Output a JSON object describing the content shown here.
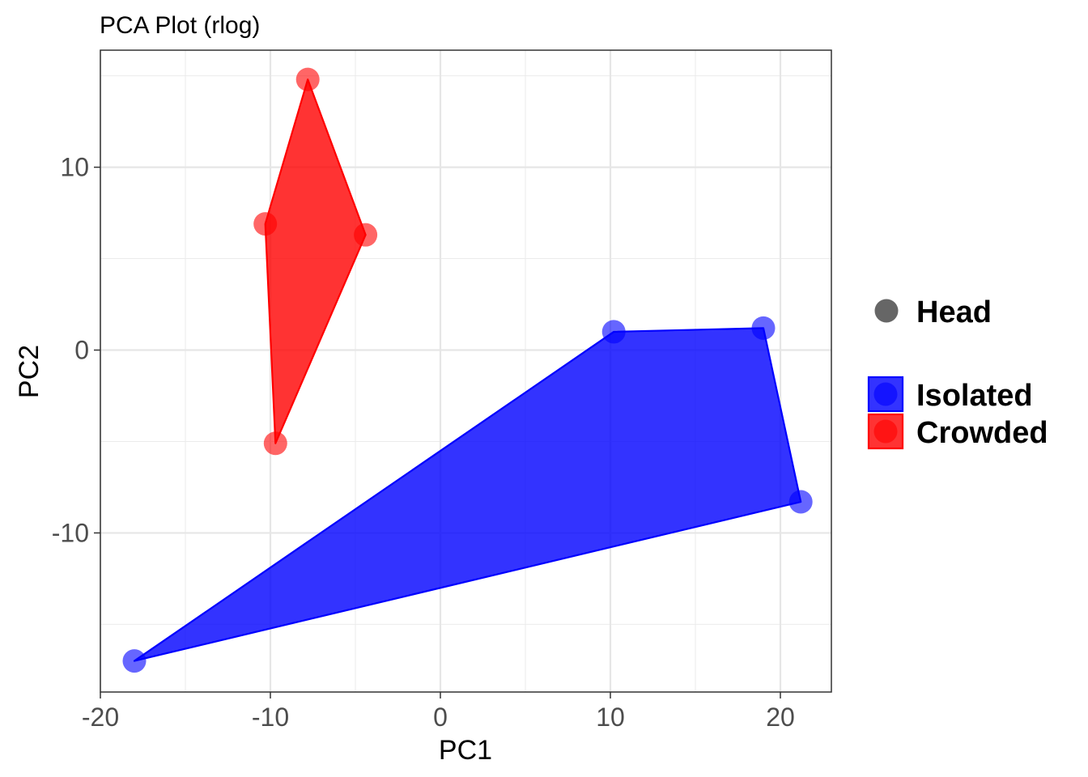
{
  "chart_data": {
    "type": "scatter",
    "title": "PCA Plot (rlog)",
    "xlabel": "PC1",
    "ylabel": "PC2",
    "xlim": [
      -20,
      23
    ],
    "ylim": [
      -18.7,
      16.4
    ],
    "x_ticks": [
      -20,
      -10,
      0,
      10,
      20
    ],
    "y_ticks": [
      -10,
      0,
      10
    ],
    "x_minor": [
      -15,
      -5,
      5,
      15
    ],
    "y_minor": [
      -15,
      -5,
      5,
      15
    ],
    "grid": true,
    "legend_position": "right",
    "shape_legend": [
      {
        "label": "Head",
        "color": "#666666"
      }
    ],
    "series": [
      {
        "name": "Isolated",
        "color": "#0000ff",
        "points": [
          [
            -18.0,
            -17.0
          ],
          [
            10.2,
            1.0
          ],
          [
            19.0,
            1.2
          ],
          [
            21.2,
            -8.3
          ]
        ],
        "hull": [
          [
            -18.0,
            -17.0
          ],
          [
            10.2,
            1.0
          ],
          [
            19.0,
            1.2
          ],
          [
            21.2,
            -8.3
          ]
        ]
      },
      {
        "name": "Crowded",
        "color": "#ff0000",
        "points": [
          [
            -7.8,
            14.8
          ],
          [
            -10.3,
            6.9
          ],
          [
            -4.4,
            6.3
          ],
          [
            -9.7,
            -5.1
          ]
        ],
        "hull": [
          [
            -7.8,
            14.8
          ],
          [
            -4.4,
            6.3
          ],
          [
            -9.7,
            -5.1
          ],
          [
            -10.3,
            6.9
          ]
        ]
      }
    ]
  }
}
